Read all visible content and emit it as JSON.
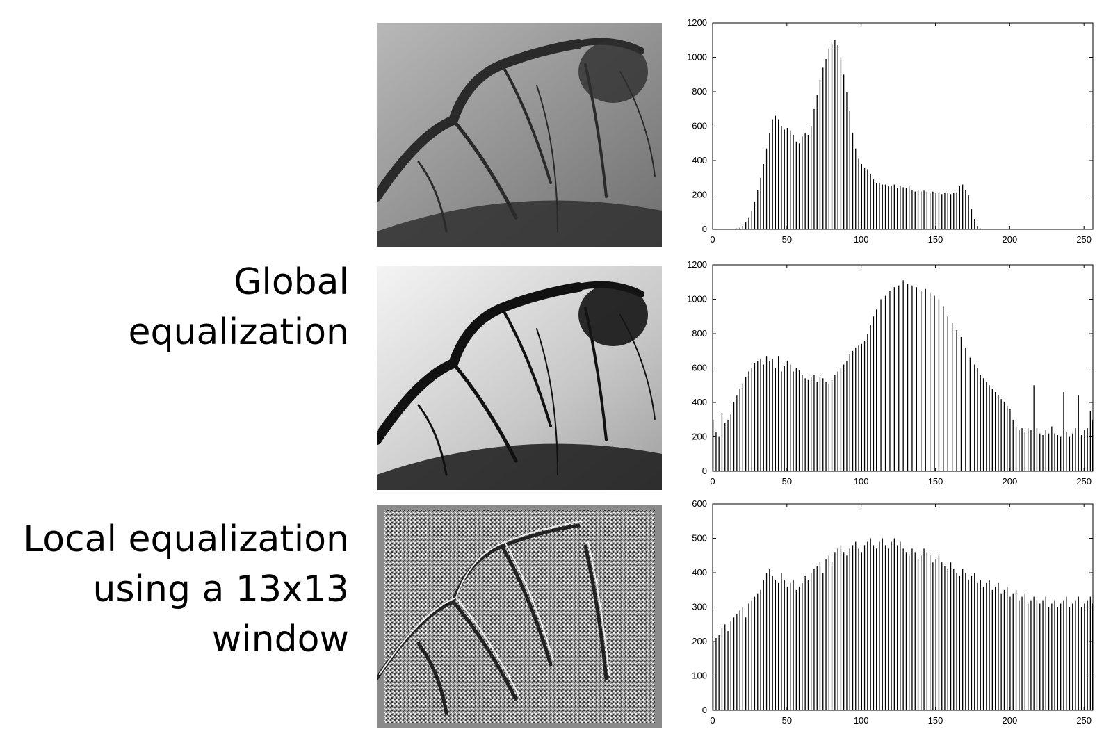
{
  "labels": {
    "global_line1": "Global",
    "global_line2": "equalization",
    "local_line1": "Local equalization",
    "local_line2": "using a 13x13",
    "local_line3": "window"
  },
  "chart_data": [
    {
      "type": "bar",
      "title": "",
      "xlabel": "",
      "ylabel": "",
      "xlim": [
        0,
        256
      ],
      "ylim": [
        0,
        1200
      ],
      "xticks": [
        0,
        50,
        100,
        150,
        200,
        250
      ],
      "yticks": [
        0,
        200,
        400,
        600,
        800,
        1000,
        1200
      ],
      "grid": false,
      "bar_width": 1,
      "x": [
        10,
        14,
        16,
        18,
        20,
        22,
        24,
        26,
        28,
        30,
        32,
        34,
        36,
        38,
        40,
        42,
        44,
        46,
        48,
        50,
        52,
        54,
        56,
        58,
        60,
        62,
        64,
        66,
        68,
        70,
        72,
        74,
        76,
        78,
        80,
        82,
        84,
        86,
        88,
        90,
        92,
        94,
        96,
        98,
        100,
        102,
        104,
        106,
        108,
        110,
        112,
        114,
        116,
        118,
        120,
        122,
        124,
        126,
        128,
        130,
        132,
        134,
        136,
        138,
        140,
        142,
        144,
        146,
        148,
        150,
        152,
        154,
        156,
        158,
        160,
        162,
        164,
        166,
        168,
        170,
        172,
        174,
        176,
        178,
        180,
        185,
        190
      ],
      "values": [
        0,
        2,
        5,
        10,
        20,
        40,
        70,
        110,
        160,
        230,
        300,
        380,
        470,
        560,
        640,
        660,
        640,
        600,
        580,
        590,
        575,
        550,
        510,
        500,
        540,
        560,
        550,
        600,
        700,
        780,
        870,
        940,
        990,
        1050,
        1080,
        1100,
        1070,
        1000,
        900,
        800,
        690,
        560,
        470,
        410,
        380,
        360,
        350,
        320,
        290,
        270,
        270,
        260,
        260,
        250,
        250,
        260,
        240,
        250,
        245,
        240,
        250,
        230,
        220,
        230,
        220,
        225,
        220,
        215,
        220,
        210,
        215,
        205,
        210,
        215,
        205,
        210,
        215,
        250,
        260,
        230,
        200,
        120,
        60,
        20,
        5,
        0,
        0
      ]
    },
    {
      "type": "bar",
      "title": "",
      "xlabel": "",
      "ylabel": "",
      "xlim": [
        0,
        256
      ],
      "ylim": [
        0,
        1200
      ],
      "xticks": [
        0,
        50,
        100,
        150,
        200,
        250
      ],
      "yticks": [
        0,
        200,
        400,
        600,
        800,
        1000,
        1200
      ],
      "grid": false,
      "bar_width": 1,
      "x": [
        0,
        2,
        4,
        6,
        8,
        10,
        12,
        14,
        16,
        18,
        20,
        22,
        24,
        26,
        28,
        30,
        32,
        34,
        36,
        38,
        40,
        42,
        44,
        46,
        48,
        50,
        52,
        54,
        56,
        58,
        60,
        62,
        64,
        66,
        68,
        70,
        72,
        74,
        76,
        78,
        80,
        82,
        84,
        86,
        88,
        90,
        92,
        94,
        96,
        98,
        100,
        102,
        104,
        106,
        108,
        110,
        113,
        116,
        119,
        122,
        125,
        128,
        131,
        134,
        137,
        140,
        143,
        146,
        149,
        152,
        155,
        158,
        161,
        164,
        167,
        170,
        173,
        176,
        178,
        180,
        182,
        184,
        186,
        188,
        190,
        192,
        194,
        196,
        198,
        200,
        202,
        204,
        206,
        208,
        210,
        212,
        214,
        216,
        218,
        220,
        222,
        224,
        226,
        228,
        230,
        232,
        234,
        236,
        238,
        240,
        242,
        244,
        246,
        248,
        250,
        252,
        254,
        256
      ],
      "values": [
        300,
        230,
        200,
        340,
        280,
        300,
        330,
        400,
        440,
        480,
        510,
        550,
        580,
        600,
        630,
        640,
        650,
        620,
        670,
        640,
        650,
        600,
        670,
        580,
        610,
        640,
        620,
        580,
        600,
        590,
        560,
        540,
        530,
        550,
        560,
        520,
        550,
        540,
        520,
        510,
        530,
        560,
        580,
        600,
        620,
        640,
        680,
        700,
        720,
        730,
        740,
        760,
        800,
        850,
        900,
        940,
        1000,
        1020,
        1050,
        1070,
        1080,
        1110,
        1090,
        1080,
        1070,
        1050,
        1060,
        1040,
        1020,
        1000,
        960,
        900,
        860,
        820,
        780,
        720,
        660,
        620,
        600,
        560,
        540,
        520,
        500,
        480,
        460,
        440,
        420,
        400,
        380,
        360,
        300,
        260,
        240,
        250,
        230,
        250,
        240,
        500,
        250,
        220,
        210,
        240,
        220,
        260,
        220,
        210,
        200,
        460,
        230,
        200,
        220,
        250,
        440,
        210,
        240,
        250,
        350,
        300
      ]
    },
    {
      "type": "bar",
      "title": "",
      "xlabel": "",
      "ylabel": "",
      "xlim": [
        0,
        256
      ],
      "ylim": [
        0,
        600
      ],
      "xticks": [
        0,
        50,
        100,
        150,
        200,
        250
      ],
      "yticks": [
        0,
        100,
        200,
        300,
        400,
        500,
        600
      ],
      "grid": false,
      "bar_width": 1,
      "x": [
        0,
        2,
        4,
        6,
        8,
        10,
        12,
        14,
        16,
        18,
        20,
        22,
        24,
        26,
        28,
        30,
        32,
        34,
        36,
        38,
        40,
        42,
        44,
        46,
        48,
        50,
        52,
        54,
        56,
        58,
        60,
        62,
        64,
        66,
        68,
        70,
        72,
        74,
        76,
        78,
        80,
        82,
        84,
        86,
        88,
        90,
        92,
        94,
        96,
        98,
        100,
        102,
        104,
        106,
        108,
        110,
        112,
        114,
        116,
        118,
        120,
        122,
        124,
        126,
        128,
        130,
        132,
        134,
        136,
        138,
        140,
        142,
        144,
        146,
        148,
        150,
        152,
        154,
        156,
        158,
        160,
        162,
        164,
        166,
        168,
        170,
        172,
        174,
        176,
        178,
        180,
        182,
        184,
        186,
        188,
        190,
        192,
        194,
        196,
        198,
        200,
        202,
        204,
        206,
        208,
        210,
        212,
        214,
        216,
        218,
        220,
        222,
        224,
        226,
        228,
        230,
        232,
        234,
        236,
        238,
        240,
        242,
        244,
        246,
        248,
        250,
        252,
        254,
        256
      ],
      "values": [
        200,
        210,
        220,
        240,
        250,
        230,
        260,
        270,
        280,
        290,
        300,
        270,
        310,
        320,
        330,
        340,
        350,
        380,
        400,
        410,
        390,
        380,
        370,
        400,
        380,
        360,
        370,
        380,
        350,
        360,
        370,
        390,
        380,
        400,
        410,
        420,
        430,
        400,
        440,
        450,
        430,
        460,
        470,
        480,
        460,
        450,
        470,
        480,
        490,
        470,
        460,
        480,
        490,
        500,
        480,
        470,
        490,
        500,
        480,
        470,
        490,
        500,
        480,
        490,
        470,
        460,
        450,
        470,
        460,
        440,
        450,
        470,
        460,
        450,
        430,
        440,
        450,
        430,
        420,
        410,
        430,
        410,
        400,
        390,
        410,
        400,
        380,
        390,
        400,
        370,
        380,
        360,
        370,
        380,
        350,
        360,
        370,
        340,
        350,
        360,
        330,
        340,
        350,
        320,
        330,
        340,
        310,
        320,
        330,
        320,
        310,
        320,
        330,
        300,
        310,
        320,
        300,
        310,
        320,
        330,
        300,
        310,
        320,
        330,
        300,
        310,
        320,
        330,
        310
      ]
    }
  ]
}
